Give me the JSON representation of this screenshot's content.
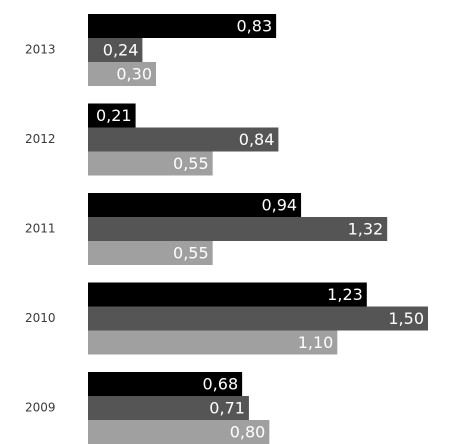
{
  "chart_data": {
    "type": "bar",
    "orientation": "horizontal",
    "categories": [
      "2013",
      "2012",
      "2011",
      "2010",
      "2009"
    ],
    "series": [
      {
        "color": "#000000",
        "values": [
          0.83,
          0.21,
          0.94,
          1.23,
          0.68
        ],
        "labels": [
          "0,83",
          "0,21",
          "0,94",
          "1,23",
          "0,68"
        ]
      },
      {
        "color": "#555555",
        "values": [
          0.24,
          0.84,
          1.32,
          1.5,
          0.71
        ],
        "labels": [
          "0,24",
          "0,84",
          "1,32",
          "1,50",
          "0,71"
        ]
      },
      {
        "color": "#a0a0a0",
        "values": [
          0.3,
          0.55,
          0.55,
          1.1,
          0.8
        ],
        "labels": [
          "0,30",
          "0,55",
          "0,55",
          "1,10",
          "0,80"
        ]
      }
    ],
    "xlim": [
      0,
      1.5
    ],
    "grid": false,
    "legend": false
  }
}
